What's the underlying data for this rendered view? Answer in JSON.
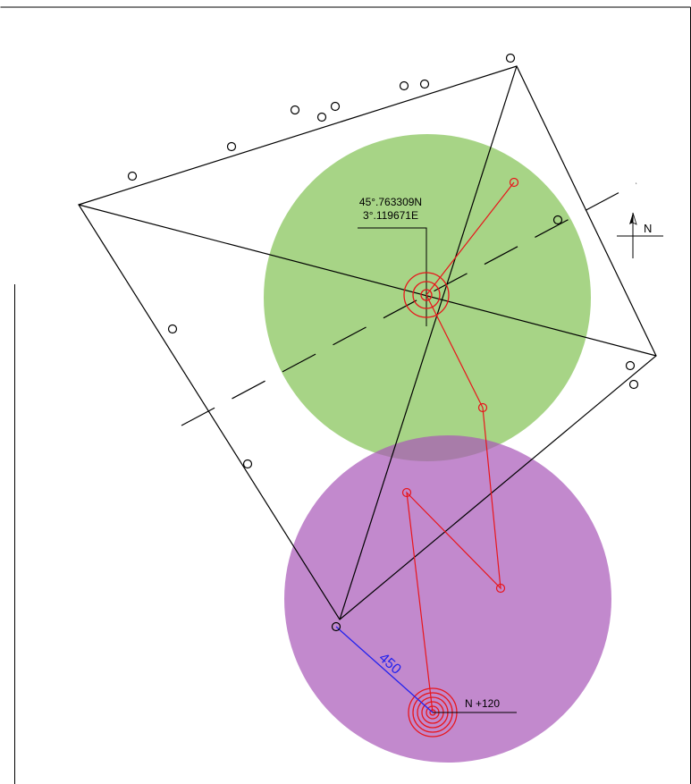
{
  "colors": {
    "outline": "#000000",
    "green_zone": "#8ac65e",
    "purple_zone": "#a857b8",
    "route": "#e8151b",
    "distance": "#2222ee"
  },
  "labels": {
    "latitude": "45°.763309N",
    "longitude": "3°.119671E",
    "north": "N",
    "distance": "450",
    "elevation": "N +120"
  },
  "icons": {
    "north_arrow": "north-arrow-icon",
    "center_target": "concentric-target-icon",
    "station_target": "concentric-rings-icon"
  }
}
